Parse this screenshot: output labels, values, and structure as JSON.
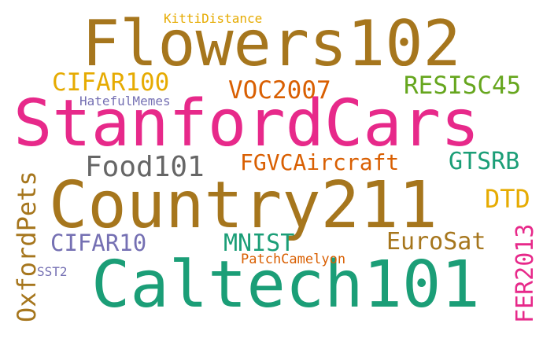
{
  "words": [
    {
      "text": "Flowers102",
      "color": "#a6761d"
    },
    {
      "text": "StanfordCars",
      "color": "#e7298a"
    },
    {
      "text": "Country211",
      "color": "#a6761d"
    },
    {
      "text": "Caltech101",
      "color": "#1b9e77"
    },
    {
      "text": "CIFAR100",
      "color": "#e6ab02"
    },
    {
      "text": "VOC2007",
      "color": "#d95f02"
    },
    {
      "text": "RESISC45",
      "color": "#66a61e"
    },
    {
      "text": "KittiDistance",
      "color": "#e6ab02"
    },
    {
      "text": "HatefulMemes",
      "color": "#7570b3"
    },
    {
      "text": "Food101",
      "color": "#666666"
    },
    {
      "text": "FGVCAircraft",
      "color": "#d95f02"
    },
    {
      "text": "GTSRB",
      "color": "#1b9e77"
    },
    {
      "text": "DTD",
      "color": "#e6ab02"
    },
    {
      "text": "OxfordPets",
      "color": "#a6761d"
    },
    {
      "text": "CIFAR10",
      "color": "#7570b3"
    },
    {
      "text": "MNIST",
      "color": "#1b9e77"
    },
    {
      "text": "EuroSat",
      "color": "#a6761d"
    },
    {
      "text": "FER2013",
      "color": "#e7298a"
    },
    {
      "text": "PatchCamelyon",
      "color": "#d95f02"
    },
    {
      "text": "SST2",
      "color": "#7570b3"
    }
  ]
}
